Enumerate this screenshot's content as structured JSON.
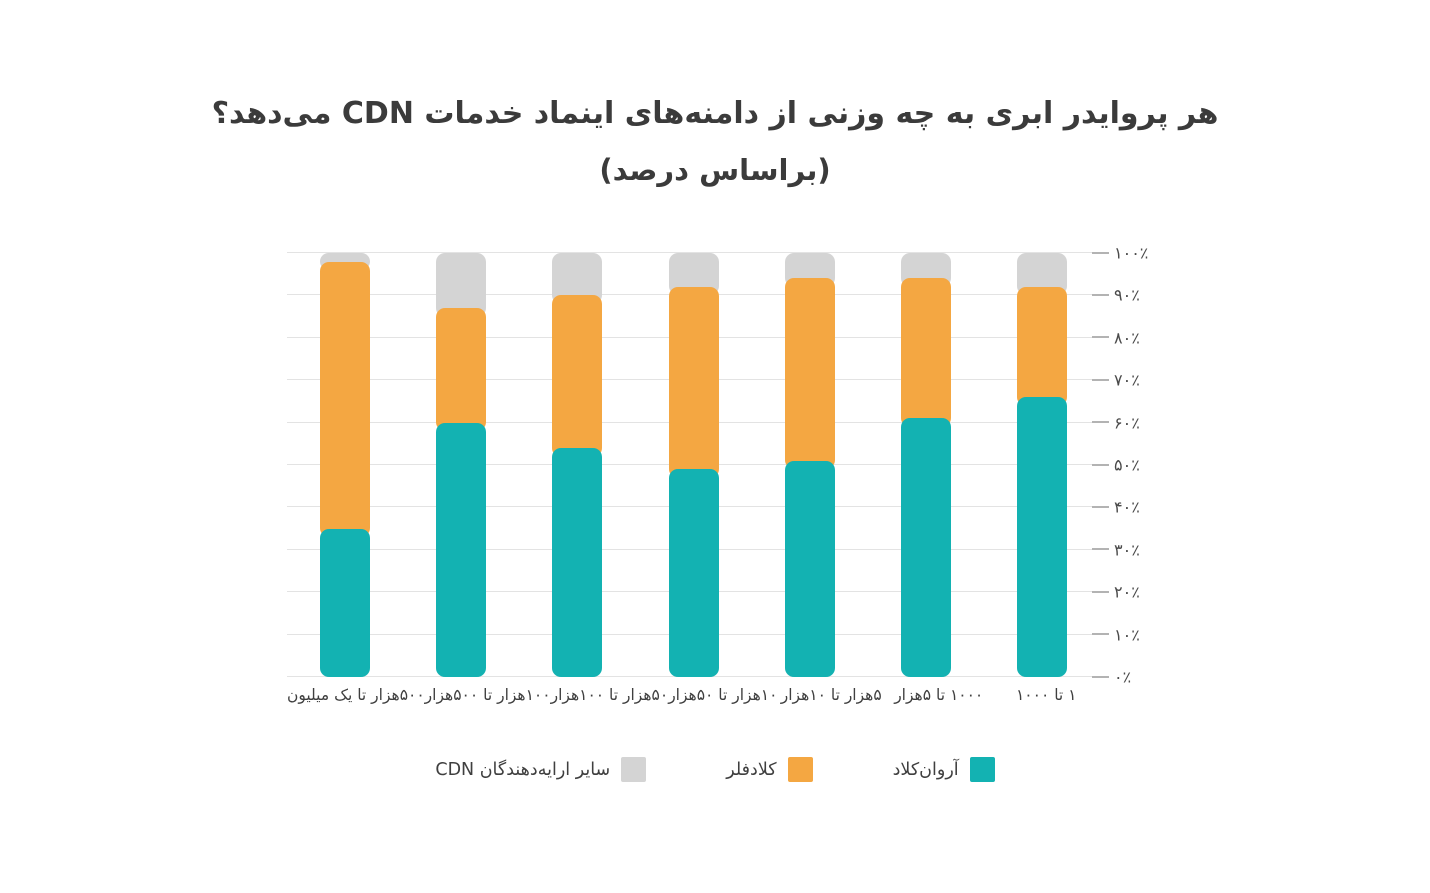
{
  "chart_data": {
    "type": "bar",
    "stacked": true,
    "layout_direction": "rtl",
    "title": "هر پروایدر ابری به چه وزنی از دامنه‌های اینماد خدمات CDN می‌دهد؟",
    "subtitle": "(براساس درصد)",
    "categories": [
      "۱ تا ۱۰۰۰",
      "۱۰۰۰ تا ۵هزار",
      "۵هزار تا ۱۰هزار",
      "۱۰هزار تا ۵۰هزار",
      "۵۰هزار تا ۱۰۰هزار",
      "۱۰۰هزار تا ۵۰۰هزار",
      "۵۰۰هزار تا یک میلیون"
    ],
    "series": [
      {
        "id": "arvancloud",
        "name": "آروان‌کلاد",
        "color": "#13b2b2",
        "values": [
          66,
          61,
          51,
          49,
          54,
          60,
          35
        ]
      },
      {
        "id": "cloudflare",
        "name": "کلادفلر",
        "color": "#f4a742",
        "values": [
          26,
          33,
          43,
          43,
          36,
          27,
          63
        ]
      },
      {
        "id": "other-cdn-providers",
        "name": "سایر ارایه‌دهندگان CDN",
        "color": "#d4d4d4",
        "values": [
          8,
          6,
          6,
          8,
          10,
          13,
          2
        ]
      }
    ],
    "y_ticks": [
      "۰٪",
      "۱۰٪",
      "۲۰٪",
      "۳۰٪",
      "۴۰٪",
      "۵۰٪",
      "۶۰٪",
      "۷۰٪",
      "۸۰٪",
      "۹۰٪",
      "۱۰۰٪"
    ],
    "y_tick_values": [
      0,
      10,
      20,
      30,
      40,
      50,
      60,
      70,
      80,
      90,
      100
    ],
    "ylim": [
      0,
      100
    ],
    "grid": true,
    "legend_position": "bottom",
    "colors": {
      "gridline": "#e3e3e3",
      "tick": "#b3b3b3",
      "title_text": "#3b3b3b",
      "axis_text": "#4a4a4a",
      "legend_text": "#3f3f3f"
    }
  }
}
